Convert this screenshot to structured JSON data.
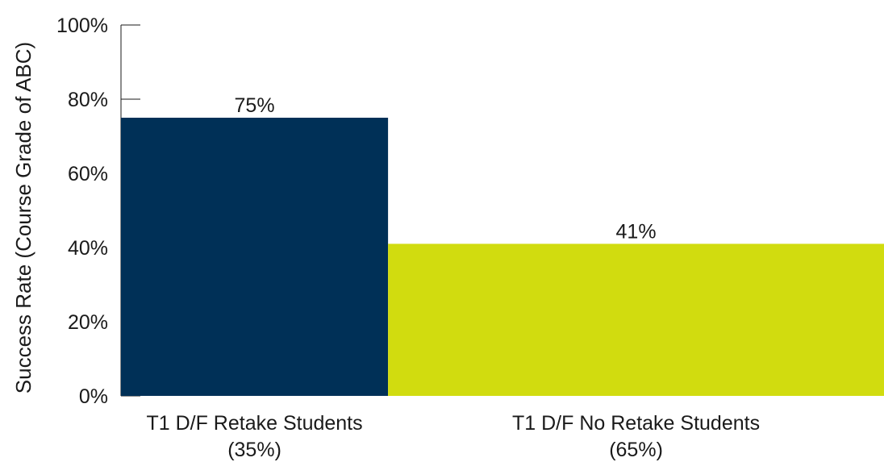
{
  "chart_data": {
    "type": "bar",
    "title": "",
    "xlabel": "",
    "ylabel": "Success Rate (Course Grade of ABC)",
    "ylim": [
      0,
      100
    ],
    "yticks": [
      "0%",
      "20%",
      "40%",
      "60%",
      "80%",
      "100%"
    ],
    "ytick_values": [
      0,
      20,
      40,
      60,
      80,
      100
    ],
    "categories": [
      {
        "line1": "T1 D/F Retake Students",
        "line2": "(35%)"
      },
      {
        "line1": "T1 D/F No Retake Students",
        "line2": "(65%)"
      }
    ],
    "values": [
      75,
      41
    ],
    "value_labels": [
      "75%",
      "41%"
    ],
    "bar_widths_share": [
      35,
      65
    ],
    "colors": [
      "#003057",
      "#d1dc0f"
    ],
    "grid": false,
    "legend": "none"
  }
}
